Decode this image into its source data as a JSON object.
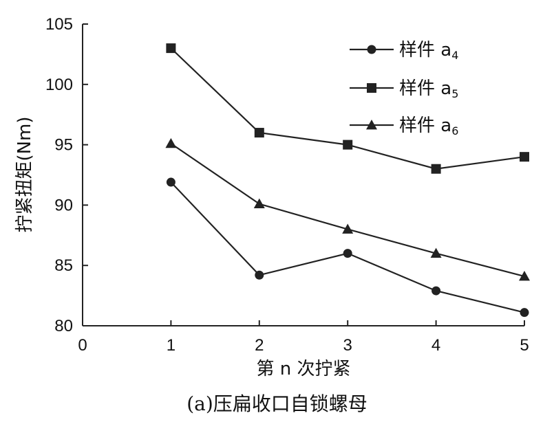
{
  "chart_data": {
    "type": "line",
    "caption": "(a)压扁收口自锁螺母",
    "xlabel": "第 n 次拧紧",
    "ylabel": "拧紧扭矩(Nm)",
    "x": [
      1,
      2,
      3,
      4,
      5
    ],
    "xlim": [
      0,
      5
    ],
    "ylim": [
      80,
      105
    ],
    "xticks": [
      "0",
      "1",
      "2",
      "3",
      "4",
      "5"
    ],
    "yticks": [
      "80",
      "85",
      "90",
      "95",
      "100",
      "105"
    ],
    "grid": false,
    "legend_position": "top-right",
    "series": [
      {
        "name": "样件 a",
        "subscript": "4",
        "marker": "circle",
        "color": "#222222",
        "values": [
          91.9,
          84.2,
          86.0,
          82.9,
          81.1
        ]
      },
      {
        "name": "样件 a",
        "subscript": "5",
        "marker": "square",
        "color": "#222222",
        "values": [
          103.0,
          96.0,
          95.0,
          93.0,
          94.0
        ]
      },
      {
        "name": "样件 a",
        "subscript": "6",
        "marker": "triangle",
        "color": "#222222",
        "values": [
          95.1,
          90.1,
          88.0,
          86.0,
          84.1
        ]
      }
    ]
  }
}
